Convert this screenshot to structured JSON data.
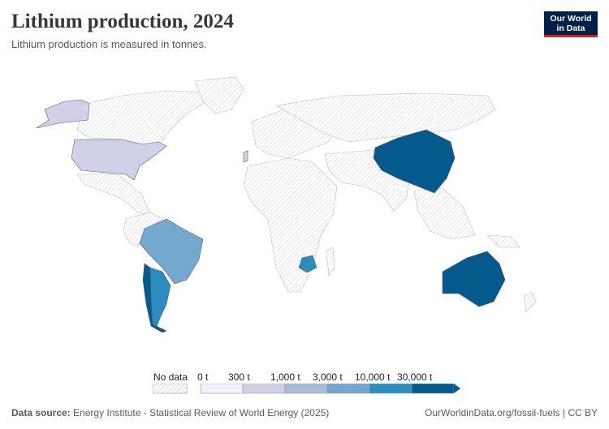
{
  "header": {
    "title": "Lithium production, 2024",
    "subtitle": "Lithium production is measured in tonnes."
  },
  "logo": {
    "line1": "Our World",
    "line2": "in Data"
  },
  "legend": {
    "no_data_label": "No data",
    "bins": [
      {
        "label": "0 t",
        "color": "#f2f2f8"
      },
      {
        "label": "300 t",
        "color": "#d0d1e6"
      },
      {
        "label": "1,000 t",
        "color": "#a6bddb"
      },
      {
        "label": "3,000 t",
        "color": "#74a9cf"
      },
      {
        "label": "10,000 t",
        "color": "#2b8cbe"
      },
      {
        "label": "30,000 t",
        "color": "#045a8d"
      }
    ]
  },
  "map_data": {
    "year": 2024,
    "unit": "tonnes",
    "countries": [
      {
        "name": "United States",
        "bin": "300–1,000 t",
        "color": "#d0d1e6"
      },
      {
        "name": "Brazil",
        "bin": "3,000–10,000 t",
        "color": "#74a9cf"
      },
      {
        "name": "Argentina",
        "bin": "10,000–30,000 t",
        "color": "#2b8cbe"
      },
      {
        "name": "Chile",
        "bin": ">30,000 t",
        "color": "#045a8d"
      },
      {
        "name": "Zimbabwe",
        "bin": "10,000–30,000 t",
        "color": "#2b8cbe"
      },
      {
        "name": "China",
        "bin": ">30,000 t",
        "color": "#045a8d"
      },
      {
        "name": "Australia",
        "bin": ">30,000 t",
        "color": "#045a8d"
      },
      {
        "name": "Portugal",
        "bin": "300–1,000 t",
        "color": "#d0d1e6"
      }
    ]
  },
  "footer": {
    "source_label": "Data source:",
    "source_text": "Energy Institute - Statistical Review of World Energy (2025)",
    "url": "OurWorldinData.org/fossil-fuels | CC BY"
  }
}
